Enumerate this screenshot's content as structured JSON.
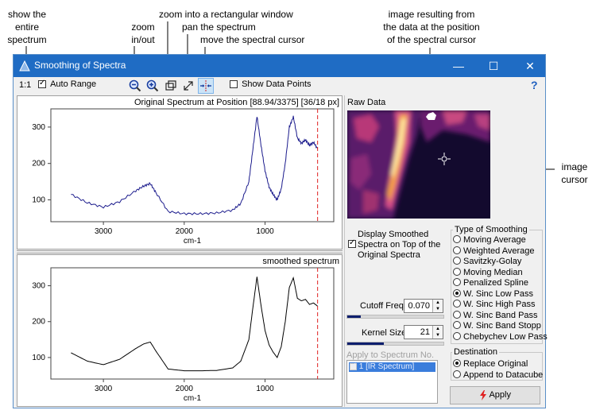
{
  "annotations": {
    "show_entire": "show the\nentire\nspectrum",
    "zoom": "zoom\nin/out",
    "zoom_rect": "zoom into a rectangular window",
    "pan": "pan the spectrum",
    "move_cursor": "move the spectral cursor",
    "image_result": "image resulting from\nthe data at the position\nof the spectral cursor",
    "image_cursor": "image\ncursor"
  },
  "window": {
    "title": "Smoothing of Spectra",
    "minimize": "—",
    "maximize": "☐",
    "close": "✕"
  },
  "toolbar": {
    "one_to_one": "1:1",
    "auto_range_label": "Auto Range",
    "auto_range_checked": true,
    "show_points_label": "Show Data Points",
    "show_points_checked": false,
    "help": "?"
  },
  "top_plot": {
    "header": "Original Spectrum at Position [88.94/3375] [36/18 px]",
    "xlabel": "cm-1",
    "xticks": [
      "3000",
      "2000",
      "1000"
    ],
    "yticks": [
      "300",
      "200",
      "100"
    ],
    "line_color": "#1a1a8c"
  },
  "bottom_plot": {
    "header": "smoothed spectrum",
    "xlabel": "cm-1",
    "xticks": [
      "3000",
      "2000",
      "1000"
    ],
    "yticks": [
      "300",
      "200",
      "100"
    ],
    "line_color": "#000000"
  },
  "chart_data": {
    "type": "line",
    "xlabel": "cm-1",
    "x_reversed": true,
    "xlim": [
      3650,
      150
    ],
    "ylim": [
      40,
      350
    ],
    "cursor_x": 350,
    "cursor_color": "#e02020",
    "x": [
      3400,
      3200,
      3000,
      2800,
      2600,
      2500,
      2420,
      2350,
      2200,
      2000,
      1800,
      1600,
      1400,
      1300,
      1200,
      1150,
      1100,
      1050,
      1000,
      950,
      900,
      850,
      800,
      750,
      700,
      650,
      600,
      550,
      500,
      450,
      400,
      350
    ],
    "series": [
      {
        "values": [
          115,
          92,
          80,
          95,
          125,
          138,
          145,
          120,
          68,
          62,
          62,
          64,
          72,
          90,
          150,
          240,
          330,
          250,
          180,
          135,
          115,
          100,
          130,
          200,
          300,
          328,
          270,
          255,
          265,
          250,
          258,
          240
        ]
      },
      {
        "values": [
          113,
          90,
          80,
          95,
          125,
          138,
          143,
          118,
          68,
          63,
          63,
          64,
          71,
          90,
          150,
          240,
          325,
          245,
          175,
          135,
          115,
          100,
          130,
          200,
          295,
          322,
          265,
          258,
          262,
          248,
          252,
          243
        ]
      }
    ]
  },
  "raw_data": {
    "label": "Raw Data"
  },
  "display_smoothed": {
    "label": "Display Smoothed Spectra on Top of the Original Spectra",
    "checked": true
  },
  "smoothing_type": {
    "legend": "Type of Smoothing",
    "options": [
      "Moving Average",
      "Weighted Average",
      "Savitzky-Golay",
      "Moving Median",
      "Penalized Spline",
      "W. Sinc Low Pass",
      "W. Sinc High Pass",
      "W. Sinc Band Pass",
      "W. Sinc Band Stopp",
      "Chebychev Low Pass"
    ],
    "selected_index": 5
  },
  "cutoff": {
    "label": "Cutoff Freq.",
    "value": "0.070",
    "level": 0.14
  },
  "kernel": {
    "label": "Kernel Size",
    "value": "21",
    "level": 0.38
  },
  "apply_to": {
    "label": "Apply to Spectrum No.",
    "items": [
      "1 [IR Spectrum]"
    ]
  },
  "destination": {
    "legend": "Destination",
    "options": [
      "Replace Original",
      "Append to Datacube"
    ],
    "selected_index": 0
  },
  "apply_button": {
    "label": "Apply"
  }
}
